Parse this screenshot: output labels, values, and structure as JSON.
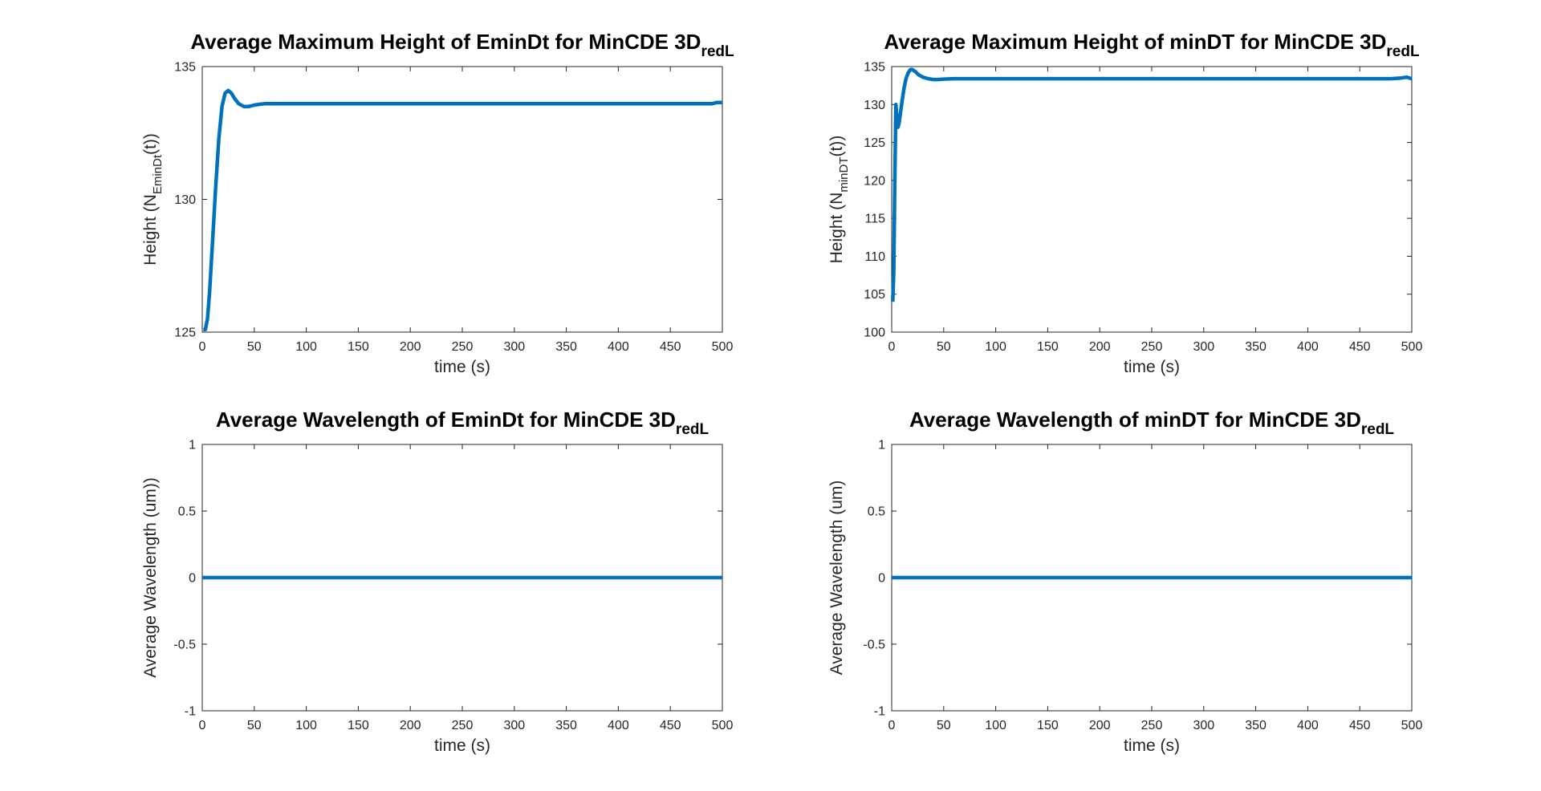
{
  "chart_data": [
    {
      "type": "line",
      "title": "Average Maximum Height of EminDt for MinCDE 3D",
      "title_sub": "redL",
      "xlabel": "time (s)",
      "ylabel": "Height (N",
      "ylabel_sub": "EminDt",
      "ylabel_end": "(t))",
      "xlim": [
        0,
        500
      ],
      "ylim": [
        125,
        135
      ],
      "xticks": [
        0,
        50,
        100,
        150,
        200,
        250,
        300,
        350,
        400,
        450,
        500
      ],
      "yticks": [
        125,
        130,
        135
      ],
      "color": "#0072BD",
      "series": [
        {
          "x": [
            1,
            3,
            5,
            7,
            10,
            13,
            16,
            19,
            22,
            25,
            28,
            31,
            35,
            40,
            45,
            50,
            55,
            60,
            70,
            80,
            100,
            150,
            200,
            250,
            300,
            350,
            400,
            450,
            480,
            490,
            495,
            500
          ],
          "values": [
            125.1,
            125.1,
            125.5,
            126.5,
            128.5,
            130.5,
            132.3,
            133.5,
            134.0,
            134.1,
            134.0,
            133.8,
            133.6,
            133.5,
            133.5,
            133.55,
            133.58,
            133.6,
            133.6,
            133.6,
            133.6,
            133.6,
            133.6,
            133.6,
            133.6,
            133.6,
            133.6,
            133.6,
            133.6,
            133.6,
            133.65,
            133.65
          ]
        }
      ]
    },
    {
      "type": "line",
      "title": "Average Maximum Height of minDT for MinCDE 3D",
      "title_sub": "redL",
      "xlabel": "time (s)",
      "ylabel": "Height (N",
      "ylabel_sub": "minDT",
      "ylabel_end": "(t))",
      "xlim": [
        0,
        500
      ],
      "ylim": [
        100,
        135
      ],
      "xticks": [
        0,
        50,
        100,
        150,
        200,
        250,
        300,
        350,
        400,
        450,
        500
      ],
      "yticks": [
        100,
        105,
        110,
        115,
        120,
        125,
        130,
        135
      ],
      "color": "#0072BD",
      "series": [
        {
          "x": [
            1,
            2,
            3,
            4,
            5,
            6,
            7,
            8,
            10,
            12,
            14,
            16,
            18,
            20,
            23,
            26,
            30,
            35,
            40,
            45,
            50,
            60,
            80,
            100,
            200,
            300,
            400,
            450,
            480,
            490,
            495,
            500
          ],
          "values": [
            104,
            108,
            120,
            130,
            128,
            127,
            127.5,
            128.5,
            130.5,
            132.3,
            133.5,
            134.2,
            134.6,
            134.6,
            134.3,
            133.9,
            133.6,
            133.4,
            133.3,
            133.3,
            133.35,
            133.4,
            133.4,
            133.4,
            133.4,
            133.4,
            133.4,
            133.4,
            133.4,
            133.5,
            133.6,
            133.4
          ]
        }
      ]
    },
    {
      "type": "line",
      "title": "Average Wavelength of EminDt for MinCDE 3D",
      "title_sub": "redL",
      "xlabel": "time (s)",
      "ylabel": "Average Wavelength (um))",
      "ylabel_sub": "",
      "ylabel_end": "",
      "xlim": [
        0,
        500
      ],
      "ylim": [
        -1,
        1
      ],
      "xticks": [
        0,
        50,
        100,
        150,
        200,
        250,
        300,
        350,
        400,
        450,
        500
      ],
      "yticks": [
        -1,
        -0.5,
        0,
        0.5,
        1
      ],
      "color": "#0072BD",
      "series": [
        {
          "x": [
            0,
            500
          ],
          "values": [
            0,
            0
          ]
        }
      ]
    },
    {
      "type": "line",
      "title": "Average Wavelength of minDT for MinCDE 3D",
      "title_sub": "redL",
      "xlabel": "time (s)",
      "ylabel": "Average Wavelength (um)",
      "ylabel_sub": "",
      "ylabel_end": "",
      "xlim": [
        0,
        500
      ],
      "ylim": [
        -1,
        1
      ],
      "xticks": [
        0,
        50,
        100,
        150,
        200,
        250,
        300,
        350,
        400,
        450,
        500
      ],
      "yticks": [
        -1,
        -0.5,
        0,
        0.5,
        1
      ],
      "color": "#0072BD",
      "series": [
        {
          "x": [
            0,
            500
          ],
          "values": [
            0,
            0
          ]
        }
      ]
    }
  ]
}
